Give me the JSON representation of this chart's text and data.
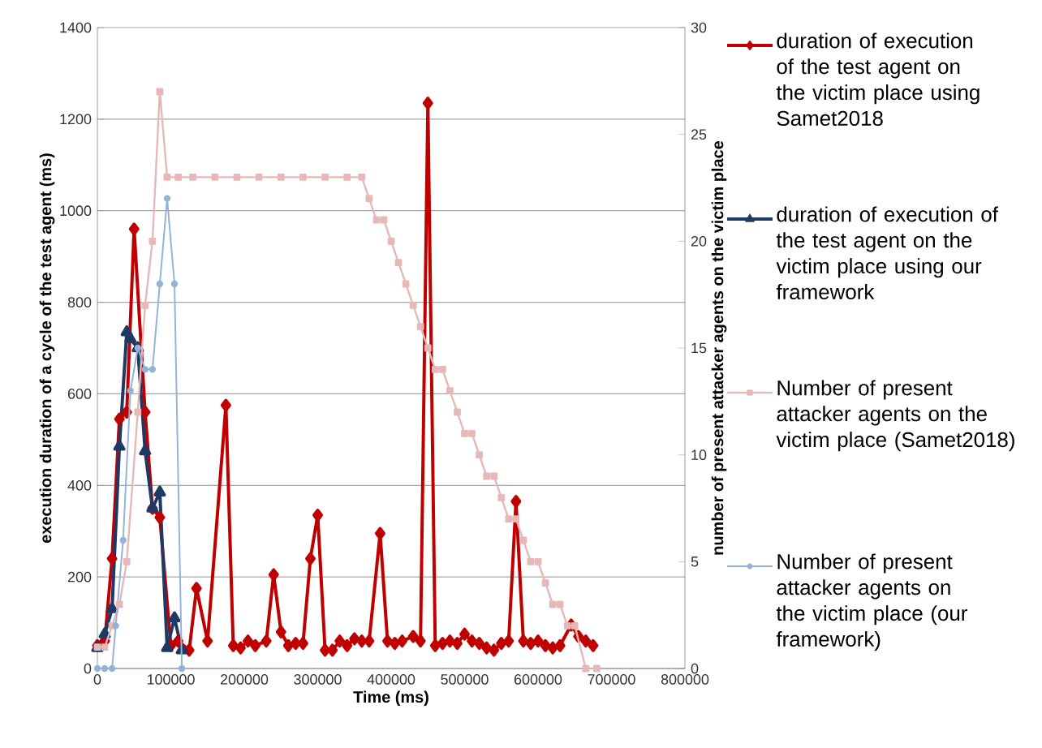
{
  "chart_data": {
    "type": "line",
    "xlabel": "Time (ms)",
    "ylabel": "execution duration of  a cycle of  the test agent (ms)",
    "y2label": "number of present attacker agents on the victim place",
    "xlim": [
      0,
      800000
    ],
    "xticks": [
      0,
      100000,
      200000,
      300000,
      400000,
      500000,
      600000,
      700000,
      800000
    ],
    "ylim": [
      0,
      1400
    ],
    "yticks": [
      0,
      200,
      400,
      600,
      800,
      1000,
      1200,
      1400
    ],
    "y2lim": [
      0,
      30
    ],
    "y2ticks": [
      0,
      5,
      10,
      15,
      20,
      25,
      30
    ],
    "grid": "y",
    "legend": "right",
    "series": [
      {
        "name": "duration of execution of the test agent on the victim place using Samet2018",
        "color": "#c00000",
        "marker": "diamond",
        "x": [
          0,
          10000,
          20000,
          30000,
          40000,
          50000,
          65000,
          75000,
          85000,
          100000,
          110000,
          125000,
          135000,
          150000,
          175000,
          185000,
          195000,
          205000,
          215000,
          230000,
          240000,
          250000,
          260000,
          270000,
          280000,
          290000,
          300000,
          310000,
          320000,
          330000,
          340000,
          350000,
          360000,
          370000,
          385000,
          395000,
          405000,
          415000,
          430000,
          440000,
          450000,
          460000,
          470000,
          480000,
          490000,
          500000,
          510000,
          520000,
          530000,
          540000,
          550000,
          560000,
          570000,
          580000,
          590000,
          600000,
          610000,
          620000,
          630000,
          645000,
          655000,
          665000,
          675000
        ],
        "values": [
          50,
          60,
          240,
          545,
          560,
          960,
          560,
          350,
          330,
          50,
          60,
          40,
          175,
          60,
          575,
          50,
          45,
          60,
          50,
          60,
          205,
          80,
          50,
          55,
          55,
          240,
          335,
          40,
          40,
          60,
          50,
          65,
          60,
          60,
          295,
          60,
          55,
          60,
          70,
          60,
          1235,
          50,
          55,
          60,
          55,
          75,
          60,
          55,
          45,
          40,
          55,
          60,
          365,
          60,
          55,
          60,
          50,
          45,
          50,
          95,
          70,
          60,
          50
        ]
      },
      {
        "name": "duration of execution of the test agent on the victim place using our framework",
        "color": "#1f3864",
        "marker": "triangle",
        "x": [
          0,
          10000,
          20000,
          30000,
          40000,
          45000,
          55000,
          65000,
          75000,
          85000,
          95000,
          105000,
          115000
        ],
        "values": [
          45,
          75,
          130,
          485,
          735,
          720,
          700,
          475,
          350,
          385,
          45,
          110,
          40
        ]
      },
      {
        "name": "Number of present attacker agents on the victim place (Samet2018)",
        "color": "#e6b9b8",
        "marker": "square",
        "axis": "y2",
        "x": [
          0,
          10000,
          20000,
          30000,
          40000,
          55000,
          65000,
          75000,
          85000,
          95000,
          110000,
          130000,
          160000,
          190000,
          220000,
          250000,
          280000,
          310000,
          340000,
          360000,
          370000,
          380000,
          390000,
          400000,
          410000,
          420000,
          430000,
          440000,
          450000,
          460000,
          470000,
          480000,
          490000,
          500000,
          510000,
          520000,
          530000,
          540000,
          550000,
          560000,
          570000,
          580000,
          590000,
          600000,
          610000,
          620000,
          630000,
          640000,
          650000,
          665000,
          680000
        ],
        "values": [
          1,
          1,
          2,
          3,
          5,
          12,
          17,
          20,
          27,
          23,
          23,
          23,
          23,
          23,
          23,
          23,
          23,
          23,
          23,
          23,
          22,
          21,
          21,
          20,
          19,
          18,
          17,
          16,
          15,
          14,
          14,
          13,
          12,
          11,
          11,
          10,
          9,
          9,
          8,
          7,
          7,
          6,
          5,
          5,
          4,
          3,
          3,
          2,
          2,
          0,
          0
        ]
      },
      {
        "name": "Number of present attacker agents on the victim place (our framework)",
        "color": "#95b3d7",
        "marker": "circle",
        "axis": "y2",
        "x": [
          0,
          10000,
          20000,
          25000,
          35000,
          45000,
          55000,
          65000,
          75000,
          85000,
          95000,
          105000,
          115000
        ],
        "values": [
          0,
          0,
          0,
          2,
          6,
          13,
          15,
          14,
          14,
          18,
          22,
          18,
          0
        ]
      }
    ]
  }
}
